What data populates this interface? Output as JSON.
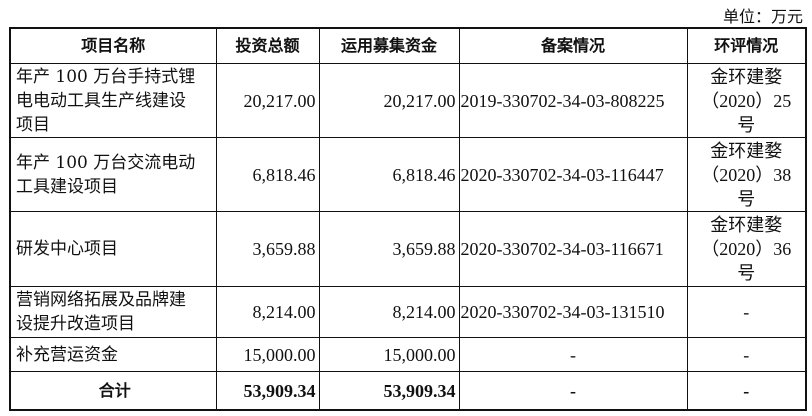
{
  "unit_label": "单位：万元",
  "headers": [
    "项目名称",
    "投资总额",
    "运用募集资金",
    "备案情况",
    "环评情况"
  ],
  "rows": [
    {
      "name": "年产 100 万台手持式锂电电动工具生产线建设项目",
      "investment": "20,217.00",
      "raised_funds": "20,217.00",
      "filing": "2019-330702-34-03-808225",
      "eia": "金环建婺（2020）25号"
    },
    {
      "name": "年产 100 万台交流电动工具建设项目",
      "investment": "6,818.46",
      "raised_funds": "6,818.46",
      "filing": "2020-330702-34-03-116447",
      "eia": "金环建婺（2020）38号"
    },
    {
      "name": "研发中心项目",
      "investment": "3,659.88",
      "raised_funds": "3,659.88",
      "filing": "2020-330702-34-03-116671",
      "eia": "金环建婺（2020）36号"
    },
    {
      "name": "营销网络拓展及品牌建设提升改造项目",
      "investment": "8,214.00",
      "raised_funds": "8,214.00",
      "filing": "2020-330702-34-03-131510",
      "eia": "-"
    },
    {
      "name": "补充营运资金",
      "investment": "15,000.00",
      "raised_funds": "15,000.00",
      "filing": "-",
      "eia": "-"
    }
  ],
  "total": {
    "name": "合计",
    "investment": "53,909.34",
    "raised_funds": "53,909.34",
    "filing": "-",
    "eia": "-"
  }
}
